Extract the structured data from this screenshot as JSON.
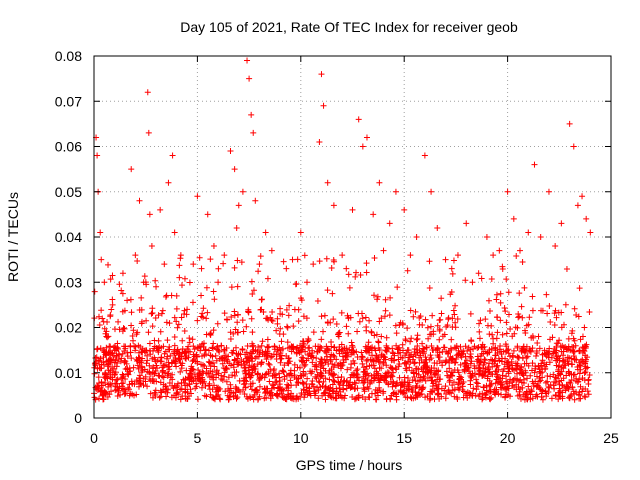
{
  "chart_data": {
    "type": "scatter",
    "title": "Day 105 of 2021, Rate Of TEC Index for receiver geob",
    "xlabel": "GPS time / hours",
    "ylabel": "ROTI / TECUs",
    "xlim": [
      0,
      25
    ],
    "ylim": [
      0,
      0.08
    ],
    "x_ticks": [
      0,
      5,
      10,
      15,
      20,
      25
    ],
    "y_ticks": [
      0,
      0.01,
      0.02,
      0.03,
      0.04,
      0.05,
      0.06,
      0.07,
      0.08
    ],
    "x_tick_labels": [
      "0",
      "5",
      "10",
      "15",
      "20",
      "25"
    ],
    "y_tick_labels": [
      "0",
      "0.01",
      "0.02",
      "0.03",
      "0.04",
      "0.05",
      "0.06",
      "0.07",
      "0.08"
    ],
    "grid": true,
    "marker": "+",
    "marker_color": "#ff0000",
    "series": [
      {
        "name": "ROTI",
        "x": [
          0.1,
          0.15,
          0.2,
          0.3,
          0.35,
          0.4,
          0.5,
          0.6,
          0.7,
          0.8,
          0.9,
          1.0,
          1.2,
          1.4,
          1.6,
          1.8,
          2.0,
          2.2,
          2.4,
          2.6,
          2.65,
          2.7,
          2.8,
          3.0,
          3.2,
          3.4,
          3.6,
          3.8,
          3.9,
          4.0,
          4.2,
          4.5,
          4.8,
          5.0,
          5.2,
          5.5,
          5.8,
          6.0,
          6.3,
          6.6,
          6.8,
          6.9,
          7.0,
          7.2,
          7.4,
          7.5,
          7.6,
          7.7,
          7.8,
          8.0,
          8.3,
          8.6,
          9.0,
          9.3,
          9.6,
          10.0,
          10.3,
          10.6,
          10.9,
          11.0,
          11.1,
          11.3,
          11.6,
          12.0,
          12.2,
          12.5,
          12.8,
          13.0,
          13.2,
          13.5,
          13.8,
          14.0,
          14.3,
          14.6,
          15.0,
          15.3,
          15.6,
          16.0,
          16.3,
          16.6,
          17.0,
          17.3,
          17.6,
          18.0,
          18.3,
          18.6,
          19.0,
          19.3,
          19.6,
          20.0,
          20.3,
          20.6,
          21.0,
          21.3,
          21.6,
          22.0,
          22.3,
          22.6,
          23.0,
          23.2,
          23.4,
          23.6,
          23.8,
          24.0
        ],
        "y": [
          0.062,
          0.058,
          0.05,
          0.041,
          0.035,
          0.022,
          0.03,
          0.018,
          0.012,
          0.009,
          0.025,
          0.015,
          0.013,
          0.032,
          0.026,
          0.055,
          0.036,
          0.048,
          0.03,
          0.072,
          0.063,
          0.045,
          0.038,
          0.029,
          0.046,
          0.034,
          0.052,
          0.058,
          0.041,
          0.027,
          0.036,
          0.024,
          0.034,
          0.049,
          0.033,
          0.045,
          0.038,
          0.03,
          0.036,
          0.059,
          0.055,
          0.042,
          0.047,
          0.05,
          0.079,
          0.075,
          0.067,
          0.063,
          0.048,
          0.034,
          0.041,
          0.037,
          0.023,
          0.033,
          0.035,
          0.041,
          0.03,
          0.034,
          0.061,
          0.076,
          0.069,
          0.052,
          0.047,
          0.036,
          0.033,
          0.046,
          0.066,
          0.06,
          0.062,
          0.045,
          0.052,
          0.037,
          0.043,
          0.05,
          0.046,
          0.036,
          0.04,
          0.058,
          0.05,
          0.042,
          0.035,
          0.033,
          0.036,
          0.043,
          0.03,
          0.032,
          0.04,
          0.036,
          0.037,
          0.05,
          0.044,
          0.037,
          0.041,
          0.056,
          0.04,
          0.05,
          0.038,
          0.043,
          0.065,
          0.06,
          0.047,
          0.049,
          0.044,
          0.041
        ]
      }
    ]
  }
}
